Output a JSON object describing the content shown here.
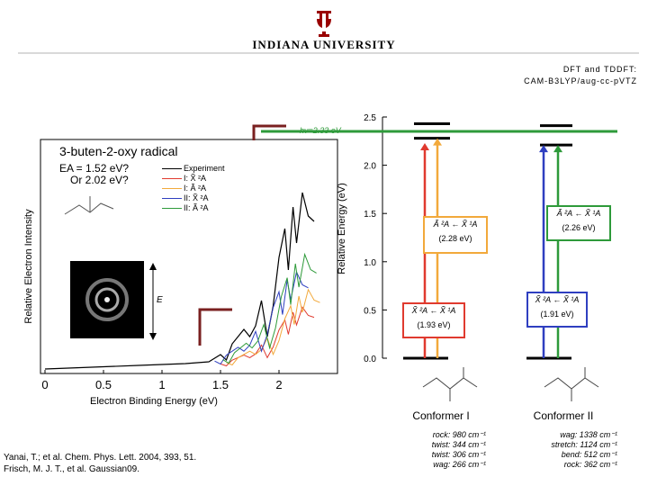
{
  "header": {
    "university": "INDIANA UNIVERSITY",
    "method_line1": "DFT and TDDFT:",
    "method_line2": "CAM-B3LYP/aug-cc-pVTZ"
  },
  "spectrum": {
    "title": "3-buten-2-oxy radical",
    "ea_line1": "EA = 1.52 eV?",
    "ea_line2": "Or 2.02 eV?",
    "ylabel": "Relative Electron Intensity",
    "xlabel": "Electron Binding Energy (eV)",
    "legend": [
      {
        "label": "Experiment",
        "color": "#000000"
      },
      {
        "label": "I: X̃ ²A",
        "color": "#e03a2f"
      },
      {
        "label": "I: Ã ²A",
        "color": "#f2a93b"
      },
      {
        "label": "II: X̃ ²A",
        "color": "#2f3fc0"
      },
      {
        "label": "II: Ã ²A",
        "color": "#2e9a3a"
      }
    ],
    "e_symbol": "E"
  },
  "levels": {
    "photon_label": "hν=2.33 eV",
    "ylabel": "Relative Energy (eV)",
    "conformer1_label": "Conformer I",
    "conformer2_label": "Conformer II",
    "box1_top": {
      "transition": "Ã ²A ← X̃ ¹A",
      "value": "(2.28 eV)"
    },
    "box1_bottom": {
      "transition": "X̃ ²A ← X̃ ¹A",
      "value": "(1.93 eV)"
    },
    "box2_top": {
      "transition": "Ã ²A ← X̃ ¹A",
      "value": "(2.26 eV)"
    },
    "box2_bottom": {
      "transition": "X̃ ²A ← X̃ ¹A",
      "value": "(1.91 eV)"
    }
  },
  "vibrations": {
    "conformer1": [
      "rock: 980 cm⁻¹",
      "twist: 344 cm⁻¹",
      "twist: 306 cm⁻¹",
      "wag: 266 cm⁻¹"
    ],
    "conformer2": [
      "wag: 1338 cm⁻¹",
      "stretch: 1124 cm⁻¹",
      "bend: 512 cm⁻¹",
      "rock: 362 cm⁻¹"
    ]
  },
  "references": {
    "line1": "Yanai, T.; et al. Chem. Phys. Lett. 2004, 393, 51.",
    "line2": "Frisch, M. J. T., et al. Gaussian09."
  },
  "colors": {
    "red": "#e03a2f",
    "orange": "#f2a93b",
    "blue": "#2f3fc0",
    "green": "#2e9a3a",
    "bracket": "#7a2020",
    "box_red": "#e03a2f",
    "box_orange": "#f2a93b",
    "box_green": "#2e9a3a",
    "box_blue": "#2f3fc0"
  },
  "chart_data": [
    {
      "type": "line",
      "xlabel": "Electron Binding Energy (eV)",
      "ylabel": "Relative Electron Intensity",
      "xlim": [
        0,
        2.33
      ],
      "xticks": [
        0,
        0.5,
        1,
        1.5,
        2
      ],
      "xtick_labels": [
        "0",
        "0.5",
        "1",
        "1.5",
        "2"
      ],
      "series": [
        {
          "name": "Experiment",
          "x": [
            0.0,
            0.4,
            0.8,
            1.2,
            1.4,
            1.5,
            1.55,
            1.6,
            1.7,
            1.75,
            1.8,
            1.85,
            1.9,
            1.95,
            2.0,
            2.05,
            2.08,
            2.12,
            2.15,
            2.2,
            2.25,
            2.3
          ],
          "y": [
            0.0,
            0.01,
            0.02,
            0.03,
            0.04,
            0.08,
            0.05,
            0.14,
            0.22,
            0.18,
            0.24,
            0.38,
            0.18,
            0.35,
            0.62,
            0.78,
            0.55,
            0.9,
            0.7,
            0.98,
            0.85,
            0.82
          ]
        }
      ]
    },
    {
      "type": "energy-level",
      "ylabel": "Relative Energy (eV)",
      "ylim": [
        0,
        2.5
      ],
      "yticks": [
        0.0,
        0.5,
        1.0,
        1.5,
        2.0,
        2.5
      ],
      "ytick_labels": [
        "0.0",
        "0.5",
        "1.0",
        "1.5",
        "2.0",
        "2.5"
      ],
      "photon_energy": 2.33,
      "conformer_I": {
        "X_transition": 1.93,
        "A_transition": 2.28
      },
      "conformer_II": {
        "X_transition": 1.91,
        "A_transition": 2.26
      }
    }
  ]
}
